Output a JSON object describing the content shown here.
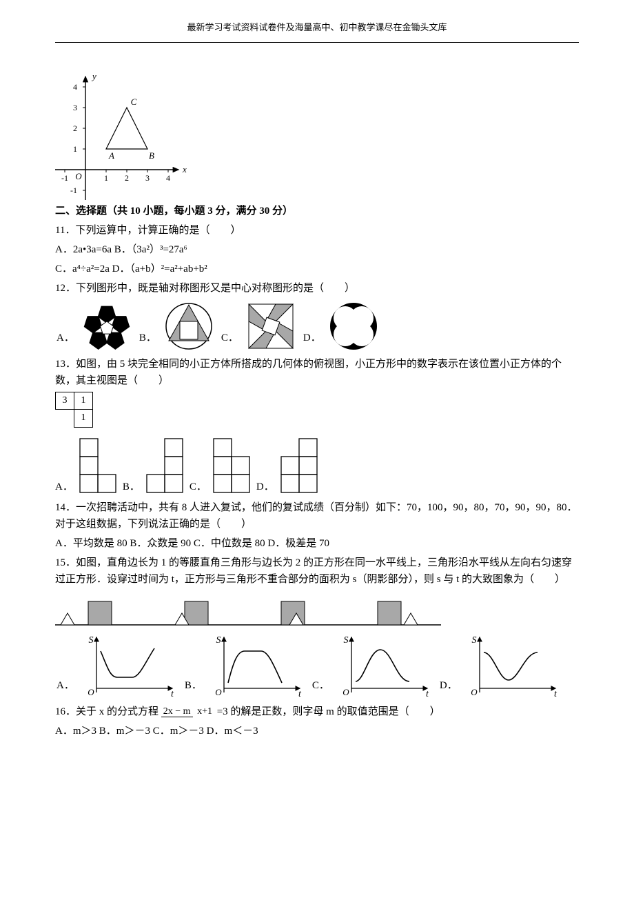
{
  "header": "最新学习考试资料试卷件及海量高中、初中教学课尽在金锄头文库",
  "graph1": {
    "xlim": [
      -1.5,
      4.5
    ],
    "ylim": [
      -1.5,
      4.5
    ],
    "xticks": [
      -1,
      1,
      2,
      3,
      4
    ],
    "yticks": [
      -1,
      1,
      2,
      3,
      4
    ],
    "axis_labels": {
      "x": "x",
      "y": "y",
      "origin": "O"
    },
    "points": {
      "A": [
        1,
        1
      ],
      "B": [
        3,
        1
      ],
      "C": [
        2,
        3
      ]
    },
    "axis_color": "#000000",
    "tick_fontsize": 12,
    "label_fontsize": 13,
    "triangle_stroke": "#000000",
    "triangle_fill": "none",
    "stroke_width": 1.2
  },
  "section2": "二、选择题（共 10 小题，每小题 3 分，满分 30 分）",
  "q11": {
    "stem": "11．下列运算中，计算正确的是（　　）",
    "A": "A．2a•3a=6a",
    "B": "B．（3a²）³=27a⁶",
    "C": "C．a⁴÷a²=2a",
    "D": "D．（a+b）²=a²+ab+b²"
  },
  "q12": {
    "stem": "12．下列图形中，既是轴对称图形又是中心对称图形的是（　　）",
    "labels": {
      "A": "A．",
      "B": "B．",
      "C": "C．",
      "D": "D．"
    },
    "colors": {
      "black": "#000000",
      "white": "#ffffff",
      "gray": "#a8a8a8",
      "stroke": "#000000"
    }
  },
  "q13": {
    "stem": "13．如图，由 5 块完全相同的小正方体所搭成的几何体的俯视图，小正方形中的数字表示在该位置小正方体的个数，其主视图是（　　）",
    "top_grid": [
      [
        "3",
        "1"
      ],
      [
        "",
        "1"
      ]
    ],
    "labels": {
      "A": "A．",
      "B": "B．",
      "C": "C．",
      "D": "D．"
    },
    "opt_color": {
      "stroke": "#000000",
      "fill": "#ffffff",
      "cell": 26
    }
  },
  "q14": {
    "stem": "14．一次招聘活动中，共有 8 人进入复试，他们的复试成绩（百分制）如下：70，100，90，80，70，90，90，80．对于这组数据，下列说法正确的是（　　）",
    "A": "A．平均数是 80",
    "B": "B．众数是 90",
    "C": "C．中位数是 80",
    "D": "D．极差是 70"
  },
  "q15": {
    "stem": "15．如图，直角边长为 1 的等腰直角三角形与边长为 2 的正方形在同一水平线上，三角形沿水平线从左向右匀速穿过正方形．设穿过时间为 t，正方形与三角形不重合部分的面积为 s（阴影部分），则 s 与 t 的大致图象为（　　）",
    "labels": {
      "A": "A．",
      "B": "B．",
      "C": "C．",
      "D": "D．"
    },
    "colors": {
      "square_fill": "#a8a8a8",
      "stroke": "#000000",
      "axis": "#000000",
      "line_width": 1.3,
      "axis_label_s": "S",
      "axis_label_t": "t",
      "origin": "O"
    }
  },
  "q16": {
    "stem_before": "16．关于 x 的分式方程",
    "frac_num": "2x − m",
    "frac_den": "x+1",
    "stem_after": "=3 的解是正数，则字母 m 的取值范围是（　　）",
    "A": "A．m＞3",
    "B": "B．m＞－3",
    "C": "C．m＞－3",
    "D": "D．m＜－3"
  }
}
